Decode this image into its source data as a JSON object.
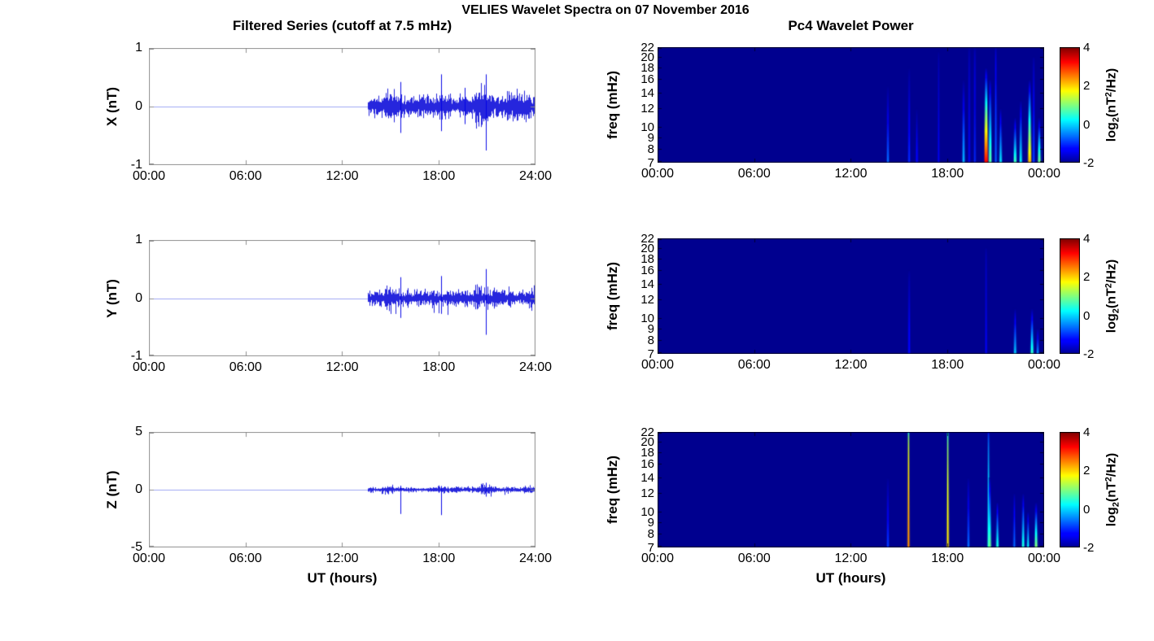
{
  "chart_data": {
    "figure_title": "VELIES Wavelet Spectra on 07 November 2016",
    "time_axis": {
      "label": "UT (hours)",
      "range_hours": [
        0,
        24
      ],
      "tick_hours": [
        0,
        6,
        12,
        18,
        24
      ],
      "tick_labels_timeseries": [
        "00:00",
        "06:00",
        "12:00",
        "18:00",
        "24:00"
      ],
      "tick_labels_spectrogram": [
        "00:00",
        "06:00",
        "12:00",
        "18:00",
        "00:00"
      ]
    },
    "timeseries": {
      "type": "line",
      "title": "Filtered Series (cutoff at 7.5 mHz)",
      "line_color": "#0000dd",
      "quiet_line_color": "rgba(80,95,235,0.55)",
      "panels": [
        {
          "component": "X",
          "ylabel": "X (nT)",
          "ylim": [
            -1,
            1
          ],
          "yticks": [
            {
              "label": "1",
              "value": 1
            },
            {
              "label": "0",
              "value": 0
            },
            {
              "label": "-1",
              "value": -1
            }
          ],
          "quiet_value": 0,
          "quiet_until_hour": 13.6,
          "noise_amp": 0.11,
          "bursts": [
            [
              14.2,
              15.4,
              1.4
            ],
            [
              17.8,
              18.6,
              1.2
            ],
            [
              20.2,
              21.2,
              1.7
            ],
            [
              22.2,
              23.7,
              1.5
            ]
          ],
          "spikes": [
            [
              15.62,
              0.42,
              -0.45
            ],
            [
              18.12,
              0.55,
              -0.42
            ],
            [
              19.6,
              0.32,
              -0.3
            ],
            [
              20.92,
              0.55,
              -0.75
            ]
          ],
          "seed": 11
        },
        {
          "component": "Y",
          "ylabel": "Y (nT)",
          "ylim": [
            -1,
            1
          ],
          "yticks": [
            {
              "label": "1",
              "value": 1
            },
            {
              "label": "0",
              "value": 0
            },
            {
              "label": "-1",
              "value": -1
            }
          ],
          "quiet_value": 0,
          "quiet_until_hour": 13.6,
          "noise_amp": 0.085,
          "bursts": [
            [
              14.2,
              15.4,
              1.2
            ],
            [
              20.2,
              21.2,
              1.3
            ],
            [
              23.3,
              24,
              1.5
            ]
          ],
          "spikes": [
            [
              15.62,
              0.36,
              -0.34
            ],
            [
              18.12,
              0.38,
              -0.27
            ],
            [
              20.92,
              0.5,
              -0.63
            ]
          ],
          "seed": 22
        },
        {
          "component": "Z",
          "ylabel": "Z (nT)",
          "ylim": [
            -5,
            5
          ],
          "yticks": [
            {
              "label": "5",
              "value": 5
            },
            {
              "label": "0",
              "value": 0
            },
            {
              "label": "-5",
              "value": -5
            }
          ],
          "quiet_value": 0,
          "quiet_until_hour": 13.6,
          "noise_amp": 0.14,
          "bursts": [
            [
              14.4,
              15.3,
              1.6
            ],
            [
              17.9,
              18.4,
              1.4
            ],
            [
              20.6,
              21.3,
              2.2
            ],
            [
              23.2,
              24,
              1.5
            ]
          ],
          "spikes": [
            [
              15.62,
              0.35,
              -2.1
            ],
            [
              18.12,
              0.32,
              -2.2
            ],
            [
              20.92,
              0.6,
              -0.6
            ]
          ],
          "seed": 33
        }
      ]
    },
    "spectrograms": {
      "type": "heatmap",
      "title": "Pc4 Wavelet Power",
      "ylabel": "freq (mHz)",
      "freq_range_mhz": [
        7,
        22
      ],
      "freq_scale": "log",
      "freq_tick_labels": [
        "22",
        "20",
        "18",
        "16",
        "14",
        "12",
        "10",
        "9",
        "8",
        "7"
      ],
      "freq_tick_values": [
        22,
        20,
        18,
        16,
        14,
        12,
        10,
        9,
        8,
        7
      ],
      "power_range_log2": [
        -2,
        4
      ],
      "colormap": "jet",
      "background_value": -2,
      "colorbar": {
        "tick_labels": [
          "4",
          "2",
          "0",
          "-2"
        ],
        "tick_values": [
          4,
          2,
          0,
          -2
        ],
        "label_parts": {
          "pre": "log",
          "sub": "2",
          "mid": "(nT",
          "sup": "2",
          "post": "/Hz)"
        }
      },
      "feature_format": [
        "hour",
        "top_freq_mhz",
        "peak_log2_power",
        "width_px",
        "fade_exponent"
      ],
      "panels": [
        {
          "component": "X",
          "features": [
            [
              14.3,
              15,
              -0.6,
              2,
              0.8
            ],
            [
              15.62,
              18,
              -1.0,
              2,
              0.7
            ],
            [
              16.1,
              12,
              -1.2,
              2,
              0.8
            ],
            [
              17.45,
              21,
              -1.4,
              1.5,
              0.45
            ],
            [
              19.0,
              16,
              -0.2,
              2.5,
              0.8
            ],
            [
              19.35,
              22,
              -1.2,
              1.5,
              0.4
            ],
            [
              19.7,
              22,
              -1.0,
              1.5,
              0.4
            ],
            [
              20.4,
              18,
              3.3,
              4,
              0.85
            ],
            [
              20.65,
              16,
              0.8,
              3,
              0.7
            ],
            [
              21.0,
              22,
              -0.7,
              2,
              0.4
            ],
            [
              21.3,
              12,
              0.2,
              2.5,
              0.8
            ],
            [
              22.2,
              11,
              0.7,
              3,
              0.85
            ],
            [
              22.55,
              13,
              0.3,
              2.5,
              0.8
            ],
            [
              23.1,
              16,
              2.2,
              3.5,
              0.85
            ],
            [
              23.35,
              20,
              -0.9,
              2,
              0.5
            ],
            [
              23.7,
              11,
              1.0,
              3,
              0.85
            ]
          ]
        },
        {
          "component": "Y",
          "features": [
            [
              15.62,
              16,
              -1.2,
              2,
              0.55
            ],
            [
              20.4,
              20,
              -1.3,
              1.5,
              0.4
            ],
            [
              22.2,
              11,
              0.0,
              2.5,
              0.85
            ],
            [
              23.25,
              11,
              0.6,
              3,
              0.85
            ],
            [
              23.6,
              9,
              -0.3,
              2,
              0.8
            ]
          ]
        },
        {
          "component": "Z",
          "features": [
            [
              14.3,
              14,
              -0.9,
              2,
              0.7
            ],
            [
              15.58,
              22,
              2.4,
              2,
              0.12
            ],
            [
              18.02,
              22,
              1.9,
              2,
              0.12
            ],
            [
              19.3,
              14,
              -0.6,
              2,
              0.7
            ],
            [
              20.55,
              22,
              0.4,
              2,
              0.22
            ],
            [
              20.62,
              14,
              0.9,
              3,
              0.8
            ],
            [
              21.1,
              11,
              0.5,
              2.5,
              0.8
            ],
            [
              22.15,
              12,
              -0.6,
              2,
              0.7
            ],
            [
              22.7,
              12,
              0.5,
              2.5,
              0.8
            ],
            [
              23.0,
              10,
              0.3,
              2,
              0.8
            ],
            [
              23.5,
              11,
              1.1,
              3,
              0.85
            ]
          ]
        }
      ]
    }
  }
}
